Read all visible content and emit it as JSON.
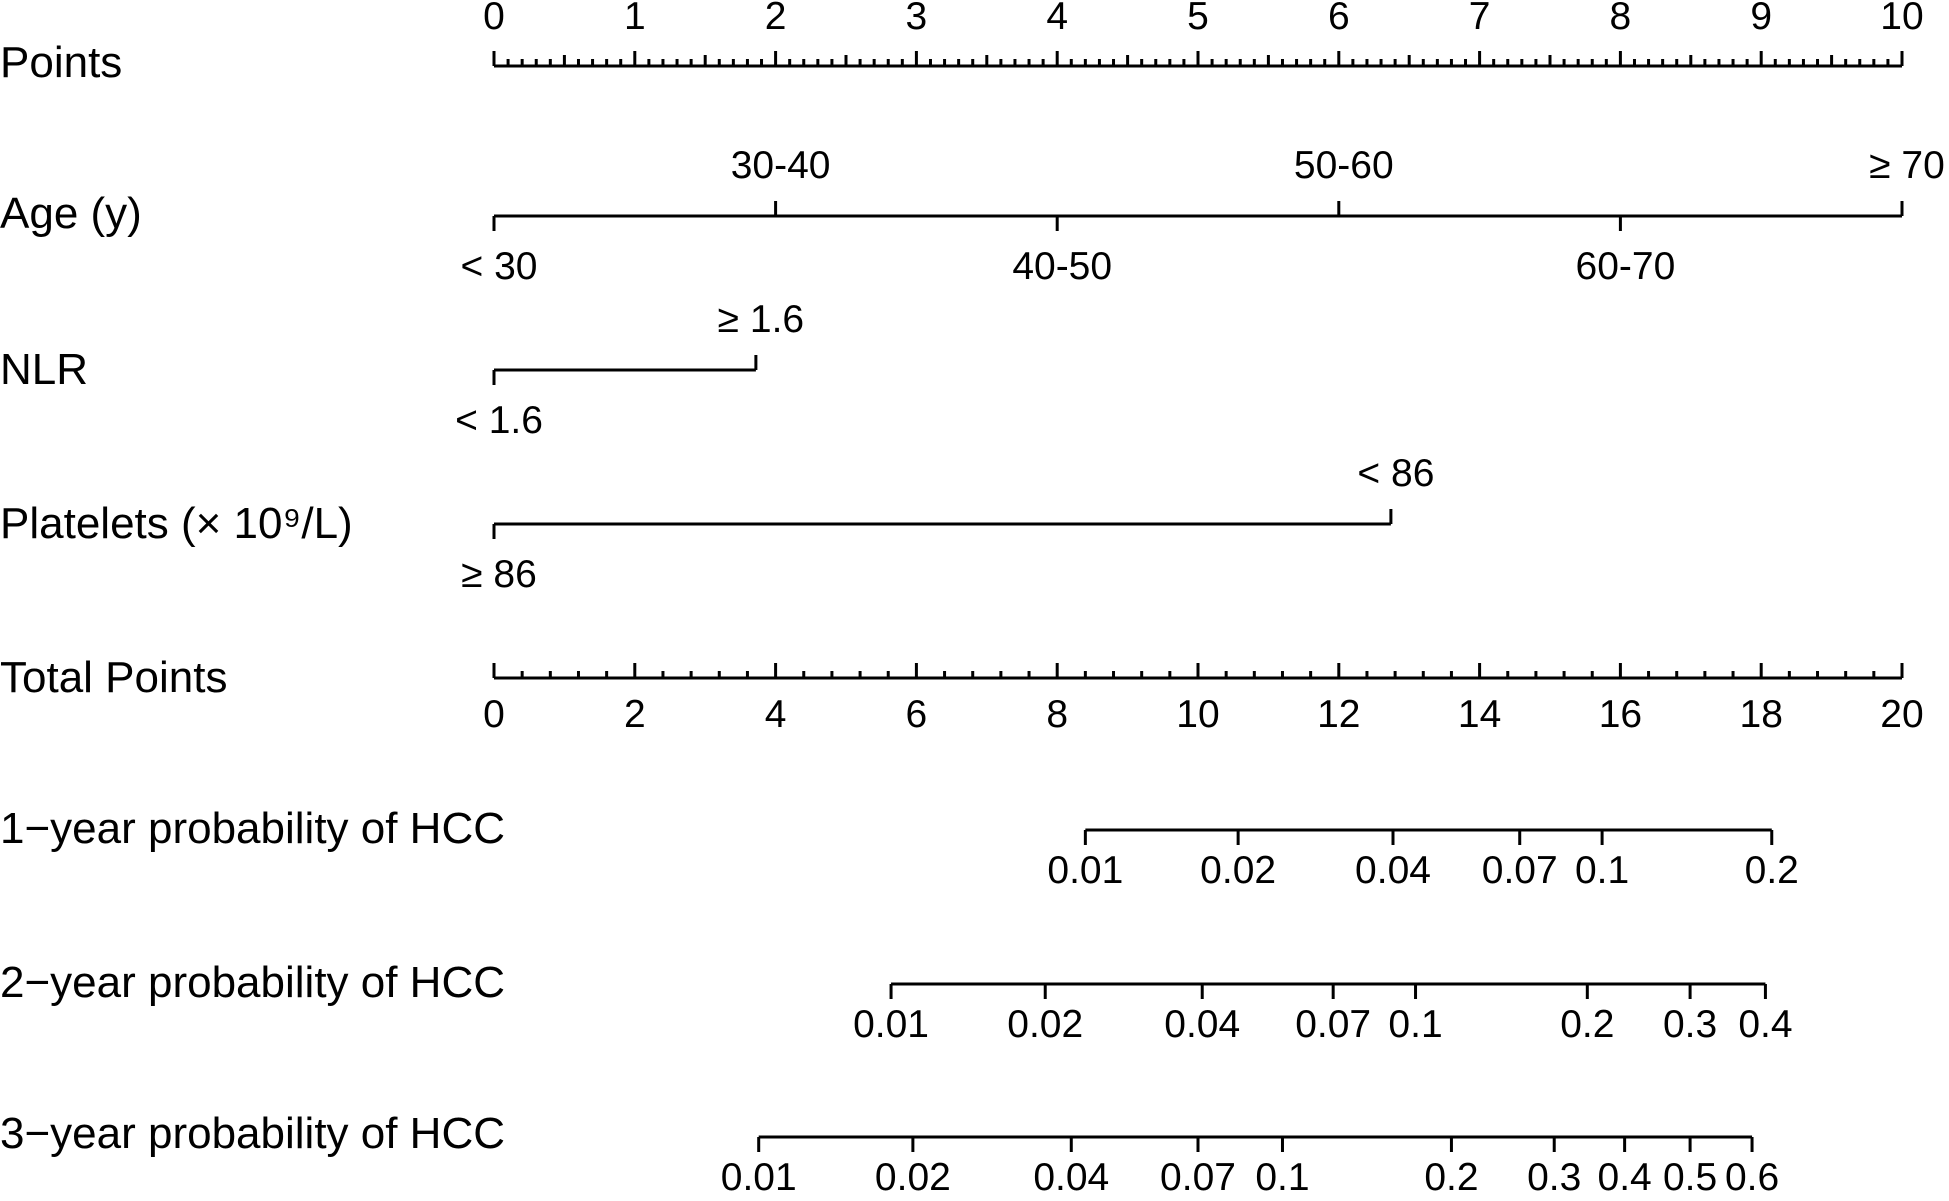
{
  "chart_data": {
    "type": "nomogram",
    "rows": [
      {
        "label": "Points",
        "scale": "linear",
        "min": 0,
        "max": 10,
        "ticks": [
          {
            "value": 0,
            "text": "0"
          },
          {
            "value": 1,
            "text": "1"
          },
          {
            "value": 2,
            "text": "2"
          },
          {
            "value": 3,
            "text": "3"
          },
          {
            "value": 4,
            "text": "4"
          },
          {
            "value": 5,
            "text": "5"
          },
          {
            "value": 6,
            "text": "6"
          },
          {
            "value": 7,
            "text": "7"
          },
          {
            "value": 8,
            "text": "8"
          },
          {
            "value": 9,
            "text": "9"
          },
          {
            "value": 10,
            "text": "10"
          }
        ],
        "minor_step": 0.1
      },
      {
        "label": "Age (y)",
        "scale": "categorical",
        "categories": [
          {
            "text": "< 30",
            "points": 0
          },
          {
            "text": "30-40",
            "points": 2
          },
          {
            "text": "40-50",
            "points": 4
          },
          {
            "text": "50-60",
            "points": 6
          },
          {
            "text": "60-70",
            "points": 8
          },
          {
            "text": "≥ 70",
            "points": 10
          }
        ]
      },
      {
        "label": "NLR",
        "scale": "categorical",
        "categories": [
          {
            "text": "< 1.6",
            "points": 0
          },
          {
            "text": "≥ 1.6",
            "points": 1.86
          }
        ]
      },
      {
        "label": "Platelets (× 10⁹/L)",
        "scale": "categorical",
        "categories": [
          {
            "text": "≥ 86",
            "points": 0
          },
          {
            "text": "< 86",
            "points": 6.37
          }
        ]
      },
      {
        "label": "Total Points",
        "scale": "linear",
        "min": 0,
        "max": 20,
        "ticks": [
          {
            "value": 0,
            "text": "0"
          },
          {
            "value": 2,
            "text": "2"
          },
          {
            "value": 4,
            "text": "4"
          },
          {
            "value": 6,
            "text": "6"
          },
          {
            "value": 8,
            "text": "8"
          },
          {
            "value": 10,
            "text": "10"
          },
          {
            "value": 12,
            "text": "12"
          },
          {
            "value": 14,
            "text": "14"
          },
          {
            "value": 16,
            "text": "16"
          },
          {
            "value": 18,
            "text": "18"
          },
          {
            "value": 20,
            "text": "20"
          }
        ],
        "minor_step": 0.4
      },
      {
        "label": "1−year probability of HCC",
        "scale": "probability",
        "ticks": [
          {
            "value": 0.01,
            "text": "0.01",
            "total_points": 8.4
          },
          {
            "value": 0.02,
            "text": "0.02",
            "total_points": 10.57
          },
          {
            "value": 0.04,
            "text": "0.04",
            "total_points": 12.77
          },
          {
            "value": 0.07,
            "text": "0.07",
            "total_points": 14.57
          },
          {
            "value": 0.1,
            "text": "0.1",
            "total_points": 15.74
          },
          {
            "value": 0.2,
            "text": "0.2",
            "total_points": 18.15
          }
        ]
      },
      {
        "label": "2−year probability of HCC",
        "scale": "probability",
        "ticks": [
          {
            "value": 0.01,
            "text": "0.01",
            "total_points": 5.64
          },
          {
            "value": 0.02,
            "text": "0.02",
            "total_points": 7.83
          },
          {
            "value": 0.04,
            "text": "0.04",
            "total_points": 10.06
          },
          {
            "value": 0.07,
            "text": "0.07",
            "total_points": 11.92
          },
          {
            "value": 0.1,
            "text": "0.1",
            "total_points": 13.09
          },
          {
            "value": 0.2,
            "text": "0.2",
            "total_points": 15.53
          },
          {
            "value": 0.3,
            "text": "0.3",
            "total_points": 16.99
          },
          {
            "value": 0.4,
            "text": "0.4",
            "total_points": 18.06
          }
        ]
      },
      {
        "label": "3−year probability of HCC",
        "scale": "probability",
        "ticks": [
          {
            "value": 0.01,
            "text": "0.01",
            "total_points": 3.76
          },
          {
            "value": 0.02,
            "text": "0.02",
            "total_points": 5.95
          },
          {
            "value": 0.04,
            "text": "0.04",
            "total_points": 8.2
          },
          {
            "value": 0.07,
            "text": "0.07",
            "total_points": 10.0
          },
          {
            "value": 0.1,
            "text": "0.1",
            "total_points": 11.2
          },
          {
            "value": 0.2,
            "text": "0.2",
            "total_points": 13.6
          },
          {
            "value": 0.3,
            "text": "0.3",
            "total_points": 15.06
          },
          {
            "value": 0.4,
            "text": "0.4",
            "total_points": 16.06
          },
          {
            "value": 0.5,
            "text": "0.5",
            "total_points": 16.99
          },
          {
            "value": 0.6,
            "text": "0.6",
            "total_points": 17.87
          }
        ]
      }
    ]
  }
}
